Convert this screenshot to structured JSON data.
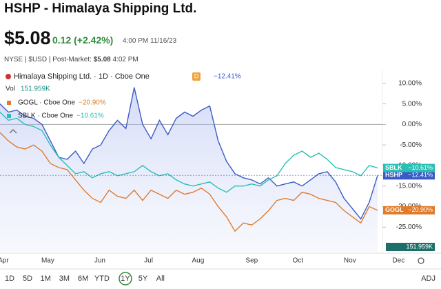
{
  "header": {
    "title": "HSHP  - Himalaya Shipping Ltd.",
    "price": "$5.08",
    "change": "0.12 (+2.42%)",
    "time": "4:00 PM 11/16/23",
    "info": "NYSE | $USD | Post-Market: ",
    "post_price": "$5.08",
    "post_time": "4:02 PM"
  },
  "chart_data": {
    "type": "line",
    "legend_title": "Himalaya Shipping Ltd. · 1D · Cboe One",
    "legend_badge": "D",
    "volume_label": "Vol",
    "volume_value": "151.959K",
    "xlim": [
      0,
      45
    ],
    "xticks": [
      {
        "value": 0.4,
        "label": "Apr"
      },
      {
        "value": 5.7,
        "label": "May"
      },
      {
        "value": 11.9,
        "label": "Jun"
      },
      {
        "value": 17.7,
        "label": "Jul"
      },
      {
        "value": 23.6,
        "label": "Aug"
      },
      {
        "value": 30,
        "label": "Sep"
      },
      {
        "value": 35.5,
        "label": "Oct"
      },
      {
        "value": 41.7,
        "label": "Nov"
      },
      {
        "value": 47.5,
        "label": "Dec"
      }
    ],
    "ylim": [
      -31,
      13.5
    ],
    "yticks": [
      {
        "value": 10,
        "label": "10.00%"
      },
      {
        "value": 5,
        "label": "5.00%"
      },
      {
        "value": 0,
        "label": "0.00%"
      },
      {
        "value": -5,
        "label": "-5.00%"
      },
      {
        "value": -10,
        "label": "-10.00%"
      },
      {
        "value": -15,
        "label": "-15.00%"
      },
      {
        "value": -20,
        "label": "-20.00%"
      },
      {
        "value": -25,
        "label": "-25.00%"
      }
    ],
    "series": [
      {
        "name": "HSHP",
        "legend": "Himalaya Shipping Ltd. · 1D · Cboe One",
        "color": "#3a5bc7",
        "area": true,
        "last_label": "−12.41%",
        "values": [
          5,
          3,
          3.5,
          2,
          1.5,
          0,
          -4,
          -8,
          -8.5,
          -6.5,
          -9.5,
          -6,
          -5,
          -1.5,
          1,
          -1,
          9,
          0,
          -3.5,
          1,
          -2.5,
          1.5,
          3,
          2,
          3.5,
          4.5,
          -4,
          -9,
          -12,
          -13,
          -13.5,
          -14.5,
          -13,
          -15,
          -14.5,
          -14,
          -15,
          -13.5,
          -12,
          -11.5,
          -14,
          -18,
          -20.5,
          -23,
          -19,
          -12.41
        ]
      },
      {
        "name": "GOGL",
        "legend": "GOGL · Cboe One",
        "color": "#e07b2a",
        "area": false,
        "last_label": "−20.90%",
        "values": [
          -2,
          -4,
          -5.5,
          -6,
          -5,
          -6.5,
          -9.5,
          -10.5,
          -11,
          -13.5,
          -16,
          -18,
          -19,
          -16,
          -17.5,
          -18,
          -16,
          -18.5,
          -16,
          -17,
          -18,
          -16,
          -17,
          -16.5,
          -15.5,
          -17,
          -20,
          -22.5,
          -26,
          -24,
          -24.5,
          -23,
          -21,
          -18.5,
          -18,
          -18.5,
          -16.5,
          -17,
          -18,
          -18.5,
          -19,
          -21,
          -22.5,
          -24,
          -20,
          -20.9
        ]
      },
      {
        "name": "SBLK",
        "legend": "SBLK · Cboe One",
        "color": "#2bbfb3",
        "area": false,
        "last_label": "−10.61%",
        "values": [
          3,
          1,
          1.5,
          0,
          -0.5,
          -1.5,
          -5,
          -8,
          -10,
          -12,
          -11.5,
          -13,
          -12,
          -11.5,
          -12.5,
          -12,
          -11.5,
          -10,
          -11.5,
          -12.5,
          -12,
          -13.5,
          -14.5,
          -15,
          -14.5,
          -14,
          -15.5,
          -16.5,
          -15,
          -15,
          -14.5,
          -15,
          -13.5,
          -12.5,
          -9.5,
          -7.5,
          -6.5,
          -8,
          -7,
          -8.5,
          -10.5,
          -11,
          -11.5,
          -12.5,
          -10,
          -10.61
        ]
      }
    ]
  },
  "ranges": {
    "items": [
      "1D",
      "5D",
      "1M",
      "3M",
      "6M",
      "YTD",
      "1Y",
      "5Y",
      "All"
    ],
    "active": "1Y",
    "adj": "ADJ"
  }
}
